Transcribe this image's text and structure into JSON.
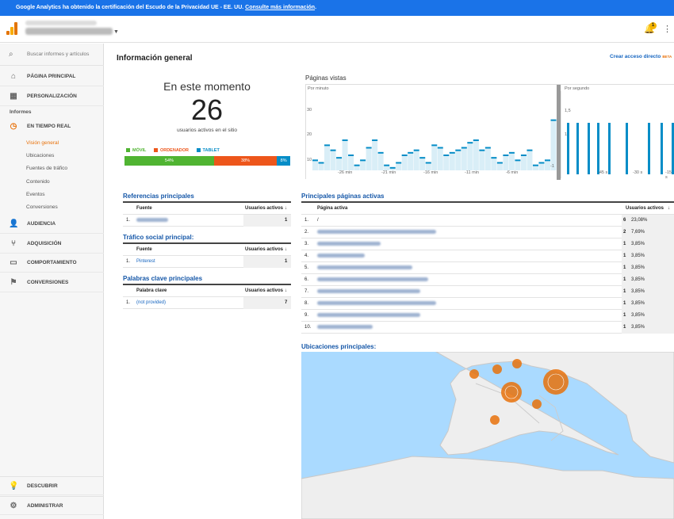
{
  "banner": {
    "text": "Google Analytics ha obtenido la certificación del Escudo de la Privacidad UE - EE. UU.",
    "link": "Consulte más información",
    "end": "."
  },
  "header": {
    "notification_count": "1"
  },
  "sidebar": {
    "search": "Buscar informes y artículos",
    "home": "PÁGINA PRINCIPAL",
    "custom": "PERSONALIZACIÓN",
    "reports_label": "Informes",
    "realtime": "EN TIEMPO REAL",
    "realtime_items": [
      "Visión general",
      "Ubicaciones",
      "Fuentes de tráfico",
      "Contenido",
      "Eventos",
      "Conversiones"
    ],
    "audience": "AUDIENCIA",
    "acquisition": "ADQUISICIÓN",
    "behavior": "COMPORTAMIENTO",
    "conversions": "CONVERSIONES",
    "discover": "DESCUBRIR",
    "admin": "ADMINISTRAR"
  },
  "main": {
    "title": "Información general",
    "shortcut": "Crear acceso directo",
    "beta": "BETA",
    "now": {
      "heading": "En este momento",
      "count": "26",
      "caption": "usuarios activos en el sitio"
    },
    "devices": [
      {
        "name": "MÓVIL",
        "pct": "54%",
        "value": 54,
        "color": "#50b432"
      },
      {
        "name": "ORDENADOR",
        "pct": "38%",
        "value": 38,
        "color": "#ed561b"
      },
      {
        "name": "TABLET",
        "pct": "8%",
        "value": 8,
        "color": "#058dc7"
      }
    ],
    "pageviews": {
      "title": "Páginas vistas",
      "per_minute": "Por minuto",
      "per_second": "Por segundo",
      "y30": "30",
      "y20": "20",
      "y10": "10",
      "sy15": "1,5",
      "sy1": "1",
      "x_labels": [
        "-26 min",
        "-21 min",
        "-16 min",
        "-11 min",
        "-6 min",
        "-1"
      ],
      "sx_labels": [
        "-45 s",
        "-30 s",
        "-15 s"
      ]
    },
    "referrals": {
      "title": "Referencias principales",
      "col1": "Fuente",
      "col2": "Usuarios activos",
      "rows": [
        {
          "n": "1.",
          "v": "1"
        }
      ]
    },
    "social": {
      "title": "Tráfico social principal:",
      "col1": "Fuente",
      "col2": "Usuarios activos",
      "rows": [
        {
          "n": "1.",
          "name": "Pinterest",
          "v": "1"
        }
      ]
    },
    "keywords": {
      "title": "Palabras clave principales",
      "col1": "Palabra clave",
      "col2": "Usuarios activos",
      "rows": [
        {
          "n": "1.",
          "name": "(not provided)",
          "v": "7"
        }
      ]
    },
    "pages": {
      "title": "Principales páginas activas",
      "col1": "Página activa",
      "col2": "Usuarios activos",
      "rows": [
        {
          "n": "1.",
          "name": "/",
          "v": "6",
          "p": "23,08%",
          "frac": 0.2308
        },
        {
          "n": "2.",
          "v": "2",
          "p": "7,69%",
          "frac": 0.0769
        },
        {
          "n": "3.",
          "v": "1",
          "p": "3,85%",
          "frac": 0.0385
        },
        {
          "n": "4.",
          "v": "1",
          "p": "3,85%",
          "frac": 0.0385
        },
        {
          "n": "5.",
          "v": "1",
          "p": "3,85%",
          "frac": 0.0385
        },
        {
          "n": "6.",
          "v": "1",
          "p": "3,85%",
          "frac": 0.0385
        },
        {
          "n": "7.",
          "v": "1",
          "p": "3,85%",
          "frac": 0.0385
        },
        {
          "n": "8.",
          "v": "1",
          "p": "3,85%",
          "frac": 0.0385
        },
        {
          "n": "9.",
          "v": "1",
          "p": "3,85%",
          "frac": 0.0385
        },
        {
          "n": "10.",
          "v": "1",
          "p": "3,85%",
          "frac": 0.0385
        }
      ]
    },
    "locations": {
      "title": "Ubicaciones principales:"
    }
  },
  "chart_data": {
    "type": "bar",
    "series": [
      {
        "values": [
          4,
          3,
          10,
          8,
          5,
          12,
          6,
          2,
          4,
          9,
          12,
          7,
          2,
          1,
          3,
          6,
          7,
          8,
          5,
          3,
          10,
          9,
          6,
          7,
          8,
          9,
          11,
          12,
          8,
          9,
          5,
          3,
          6,
          7,
          4,
          6,
          8,
          2,
          3,
          4,
          20
        ]
      }
    ],
    "ylim": [
      0,
      30
    ]
  }
}
